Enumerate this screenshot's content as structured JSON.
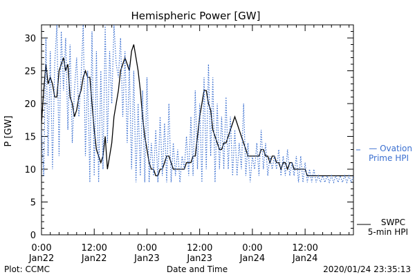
{
  "chart_data": {
    "type": "line",
    "title": "Hemispheric Power [GW]",
    "xlabel": "Date and Time",
    "ylabel": "P [GW]",
    "ylim": [
      0,
      32
    ],
    "xlim_hours": [
      0,
      71
    ],
    "yticks": [
      0,
      5,
      10,
      15,
      20,
      25,
      30
    ],
    "xticks": [
      {
        "t": 0,
        "line1": "0:00",
        "line2": "Jan22"
      },
      {
        "t": 12,
        "line1": "12:00",
        "line2": "Jan22"
      },
      {
        "t": 24,
        "line1": "0:00",
        "line2": "Jan23"
      },
      {
        "t": 36,
        "line1": "12:00",
        "line2": "Jan23"
      },
      {
        "t": 48,
        "line1": "0:00",
        "line2": "Jan24"
      },
      {
        "t": 60,
        "line1": "12:00",
        "line2": "Jan24"
      }
    ],
    "grid": false,
    "legend_position": "right",
    "series": [
      {
        "name": "SWPC 5-min HPI",
        "legend_line1": "SWPC",
        "legend_line2": "5-min HPI",
        "color": "#000000",
        "style": "solid",
        "x": [
          0,
          0.5,
          1,
          1.5,
          2,
          2.5,
          3,
          3.5,
          4,
          4.5,
          5,
          5.5,
          6,
          6.5,
          7,
          7.5,
          8,
          8.5,
          9,
          9.5,
          10,
          10.5,
          11,
          11.5,
          12,
          12.5,
          13,
          13.5,
          14,
          14.5,
          15,
          15.5,
          16,
          16.5,
          17,
          17.5,
          18,
          18.5,
          19,
          19.5,
          20,
          20.5,
          21,
          21.5,
          22,
          22.5,
          23,
          23.5,
          24,
          24.5,
          25,
          25.5,
          26,
          26.5,
          27,
          27.5,
          28,
          28.5,
          29,
          29.5,
          30,
          30.5,
          31,
          31.5,
          32,
          32.5,
          33,
          33.5,
          34,
          34.5,
          35,
          35.5,
          36,
          36.5,
          37,
          37.5,
          38,
          38.5,
          39,
          39.5,
          40,
          40.5,
          41,
          41.5,
          42,
          42.5,
          43,
          43.5,
          44,
          44.5,
          45,
          45.5,
          46,
          46.5,
          47,
          47.5,
          48,
          48.5,
          49,
          49.5,
          50,
          50.5,
          51,
          51.5,
          52,
          52.5,
          53,
          53.5,
          54,
          54.5,
          55,
          55.5,
          56,
          56.5,
          57,
          57.5,
          58,
          58.5,
          59,
          59.5,
          60,
          60.5,
          61,
          61.5,
          62,
          62.5,
          63,
          63.5,
          64,
          64.5,
          65,
          65.5,
          66,
          66.5,
          67,
          67.5,
          68,
          68.5,
          69,
          69.5,
          70,
          70.5,
          71
        ],
        "y": [
          17,
          22,
          26,
          23,
          24,
          23,
          21,
          21,
          25,
          26,
          27,
          25,
          26,
          21,
          20,
          18,
          19,
          21,
          22,
          24,
          25,
          24,
          24,
          20,
          16,
          13,
          12,
          11,
          12,
          15,
          10,
          12,
          14,
          18,
          20,
          22,
          25,
          26,
          27,
          26,
          25,
          28,
          29,
          27,
          25,
          22,
          18,
          15,
          13,
          11,
          10,
          10,
          9,
          9,
          10,
          10,
          11,
          12,
          12,
          11,
          10,
          10,
          10,
          10,
          10,
          10,
          11,
          11,
          11,
          12,
          12,
          15,
          18,
          20,
          22,
          22,
          20,
          19,
          16,
          15,
          14,
          13,
          13,
          14,
          14,
          15,
          16,
          17,
          18,
          17,
          16,
          15,
          14,
          13,
          12,
          12,
          12,
          12,
          12,
          12,
          13,
          13,
          12,
          12,
          11,
          12,
          12,
          11,
          11,
          10,
          11,
          11,
          10,
          11,
          11,
          10,
          10,
          10,
          10,
          10,
          10,
          9,
          9,
          9,
          9,
          9,
          9,
          9,
          9,
          9,
          9,
          9,
          9,
          9,
          9,
          9,
          9,
          9,
          9,
          9,
          9,
          9,
          9
        ]
      },
      {
        "name": "Ovation Prime HPI",
        "legend_line1": "— Ovation",
        "legend_line2": "Prime HPI",
        "color": "#3a6fd0",
        "style": "dotted",
        "x": [
          0,
          0.5,
          1,
          1.5,
          2,
          2.5,
          3,
          3.5,
          4,
          4.5,
          5,
          5.5,
          6,
          6.5,
          7,
          7.5,
          8,
          8.5,
          9,
          9.5,
          10,
          10.5,
          11,
          11.5,
          12,
          12.5,
          13,
          13.5,
          14,
          14.5,
          15,
          15.5,
          16,
          16.5,
          17,
          17.5,
          18,
          18.5,
          19,
          19.5,
          20,
          20.5,
          21,
          21.5,
          22,
          22.5,
          23,
          23.5,
          24,
          24.5,
          25,
          25.5,
          26,
          26.5,
          27,
          27.5,
          28,
          28.5,
          29,
          29.5,
          30,
          30.5,
          31,
          31.5,
          32,
          32.5,
          33,
          33.5,
          34,
          34.5,
          35,
          35.5,
          36,
          36.5,
          37,
          37.5,
          38,
          38.5,
          39,
          39.5,
          40,
          40.5,
          41,
          41.5,
          42,
          42.5,
          43,
          43.5,
          44,
          44.5,
          45,
          45.5,
          46,
          46.5,
          47,
          47.5,
          48,
          48.5,
          49,
          49.5,
          50,
          50.5,
          51,
          51.5,
          52,
          52.5,
          53,
          53.5,
          54,
          54.5,
          55,
          55.5,
          56,
          56.5,
          57,
          57.5,
          58,
          58.5,
          59,
          59.5,
          60,
          60.5,
          61,
          61.5,
          62,
          62.5,
          63,
          63.5,
          64,
          64.5,
          65,
          65.5,
          66,
          66.5,
          67,
          67.5,
          68,
          68.5,
          69,
          69.5,
          70,
          70.5,
          71
        ],
        "y": [
          16,
          9,
          30,
          12,
          28,
          10,
          26,
          32,
          12,
          31,
          22,
          30,
          16,
          29,
          14,
          22,
          27,
          18,
          24,
          32,
          12,
          25,
          8,
          31,
          9,
          28,
          8,
          25,
          10,
          32,
          14,
          28,
          20,
          32,
          26,
          24,
          30,
          18,
          28,
          14,
          26,
          10,
          25,
          8,
          20,
          9,
          22,
          8,
          24,
          8,
          14,
          9,
          16,
          8,
          18,
          9,
          17,
          8,
          20,
          8,
          14,
          9,
          13,
          8,
          12,
          10,
          15,
          9,
          18,
          9,
          22,
          10,
          20,
          8,
          24,
          10,
          26,
          12,
          24,
          8,
          20,
          10,
          18,
          10,
          21,
          10,
          18,
          9,
          16,
          9,
          14,
          10,
          20,
          9,
          14,
          8,
          12,
          10,
          14,
          9,
          16,
          10,
          14,
          9,
          12,
          10,
          12,
          10,
          13,
          9,
          12,
          9,
          13,
          9,
          11,
          9,
          12,
          8,
          12,
          8,
          11,
          8,
          10,
          8,
          10,
          8,
          9,
          8,
          9,
          8,
          9,
          8,
          9,
          8,
          9,
          8,
          9,
          8,
          9,
          8,
          9,
          8,
          9
        ]
      }
    ]
  },
  "footer": {
    "source": "Plot: CCMC",
    "timestamp": "2020/01/24 23:35:13"
  }
}
